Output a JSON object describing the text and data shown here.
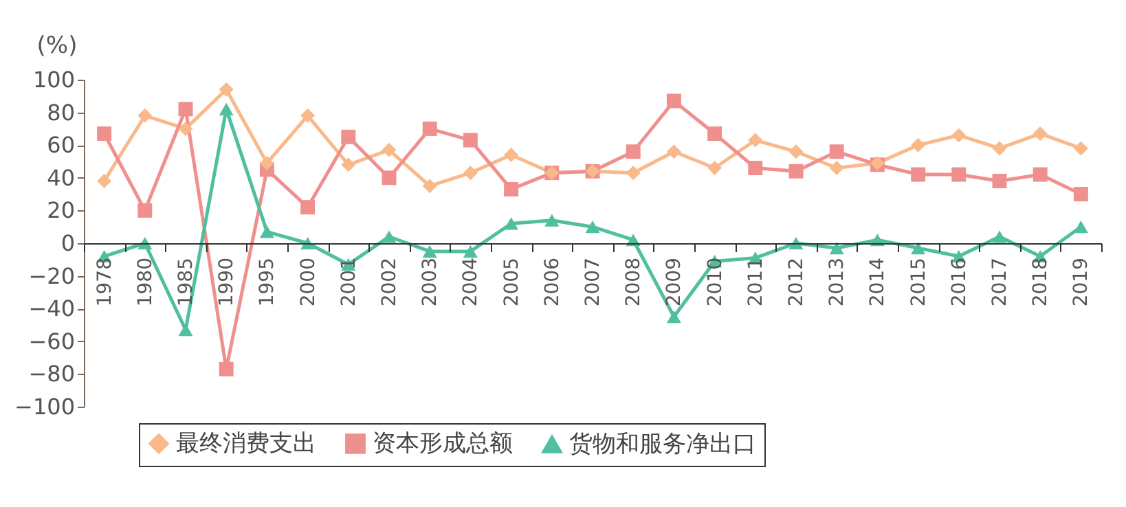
{
  "chart_data": {
    "type": "line",
    "ylabel": "(%)",
    "categories": [
      "1978",
      "1980",
      "1985",
      "1990",
      "1995",
      "2000",
      "2001",
      "2002",
      "2003",
      "2004",
      "2005",
      "2006",
      "2007",
      "2008",
      "2009",
      "2010",
      "2011",
      "2012",
      "2013",
      "2014",
      "2015",
      "2016",
      "2017",
      "2018",
      "2019"
    ],
    "series": [
      {
        "name": "最终消费支出",
        "color": "#f9b98a",
        "marker": "diamond",
        "values": [
          38,
          78,
          70,
          94,
          49,
          78,
          48,
          57,
          35,
          43,
          54,
          43,
          44,
          43,
          56,
          46,
          63,
          56,
          46,
          49,
          60,
          66,
          58,
          67,
          58
        ]
      },
      {
        "name": "资本形成总额",
        "color": "#f0908e",
        "marker": "square",
        "values": [
          67,
          20,
          82,
          -77,
          45,
          22,
          65,
          40,
          70,
          63,
          33,
          43,
          44,
          56,
          87,
          67,
          46,
          44,
          56,
          48,
          42,
          42,
          38,
          42,
          30
        ]
      },
      {
        "name": "货物和服务净出口",
        "color": "#4fbf9f",
        "marker": "triangle",
        "values": [
          -8,
          0,
          -53,
          82,
          7,
          0,
          -13,
          4,
          -5,
          -5,
          12,
          14,
          10,
          2,
          -45,
          -11,
          -9,
          0,
          -3,
          2,
          -3,
          -8,
          4,
          -8,
          10
        ]
      }
    ],
    "ylim": [
      -100,
      100
    ],
    "yticks": [
      -100,
      -80,
      -60,
      -40,
      -20,
      0,
      20,
      40,
      60,
      80,
      100
    ],
    "grid": false,
    "legend": "bottom",
    "line_style": "solid"
  }
}
